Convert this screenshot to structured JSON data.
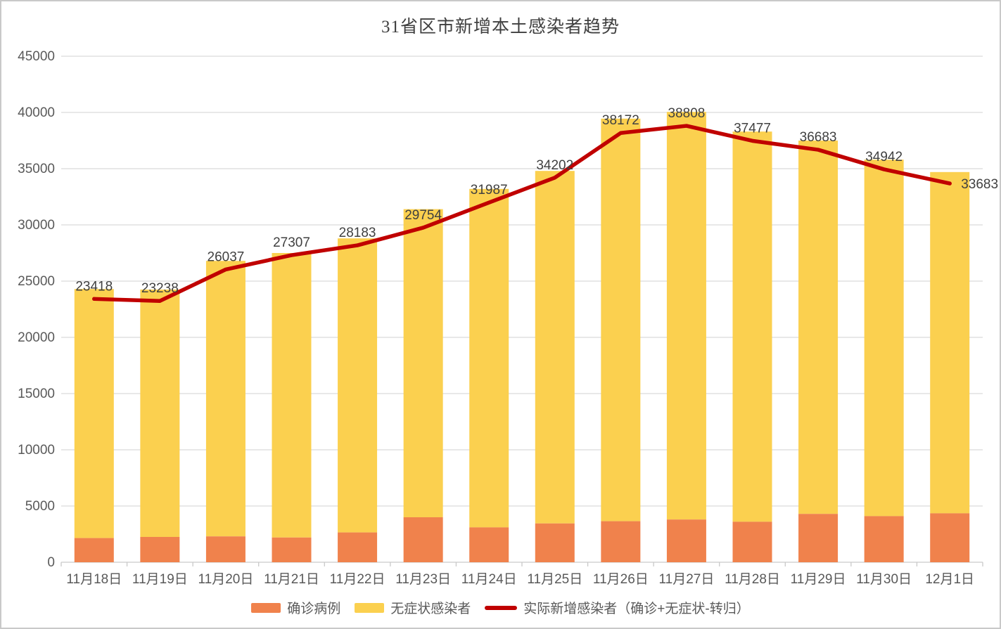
{
  "chart_data": {
    "type": "bar",
    "subtype": "stacked-bars-with-line-overlay",
    "title": "31省区市新增本土感染者趋势",
    "categories": [
      "11月18日",
      "11月19日",
      "11月20日",
      "11月21日",
      "11月22日",
      "11月23日",
      "11月24日",
      "11月25日",
      "11月26日",
      "11月27日",
      "11月28日",
      "11月29日",
      "11月30日",
      "12月1日"
    ],
    "series": [
      {
        "name": "确诊病例",
        "type": "bar",
        "stack": "total",
        "color": "#F0824C",
        "values": [
          2150,
          2250,
          2300,
          2200,
          2650,
          4000,
          3100,
          3450,
          3650,
          3800,
          3600,
          4300,
          4100,
          4350
        ]
      },
      {
        "name": "无症状感染者",
        "type": "bar",
        "stack": "total",
        "color": "#FBD04F",
        "values": [
          22150,
          22000,
          24500,
          25300,
          26150,
          27400,
          30100,
          31350,
          35800,
          36250,
          34700,
          33200,
          31700,
          30350
        ]
      },
      {
        "name": "实际新增感染者（确诊+无症状-转归）",
        "type": "line",
        "color": "#C00000",
        "values": [
          23418,
          23238,
          26037,
          27307,
          28183,
          29754,
          31987,
          34202,
          38172,
          38808,
          37477,
          36683,
          34942,
          33683
        ],
        "data_labels": [
          "23418",
          "23238",
          "26037",
          "27307",
          "28183",
          "29754",
          "31987",
          "34202",
          "38172",
          "38808",
          "37477",
          "36683",
          "34942",
          "33683"
        ]
      }
    ],
    "ylabel": "",
    "xlabel": "",
    "ylim": [
      0,
      45000
    ],
    "ytick_step": 5000,
    "ytick_labels": [
      "0",
      "5000",
      "10000",
      "15000",
      "20000",
      "25000",
      "30000",
      "35000",
      "40000",
      "45000"
    ],
    "grid": true,
    "legend_position": "bottom",
    "colors": {
      "gridline": "#D9D9D9",
      "axis": "#C9C9C9",
      "axis_label": "#595959",
      "data_label": "#404040",
      "title": "#3F3F3F"
    }
  }
}
